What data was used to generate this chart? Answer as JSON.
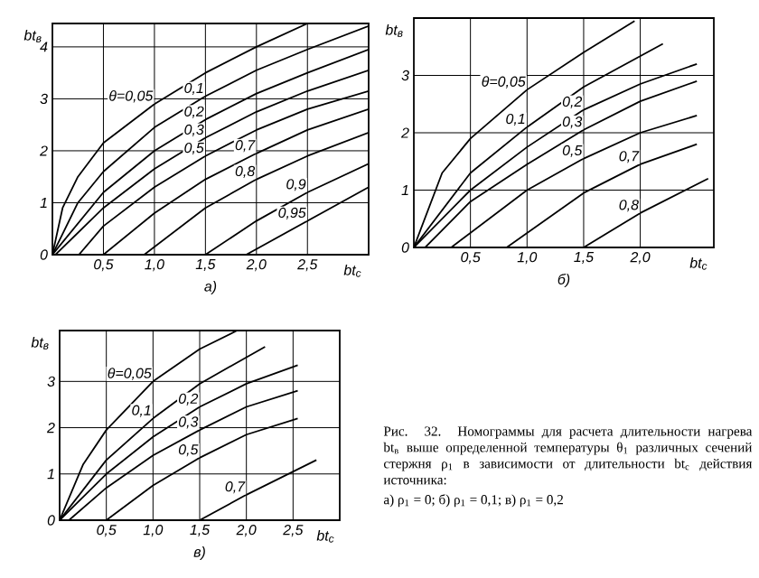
{
  "chart_data": [
    {
      "type": "line",
      "xlabel": "bt$_{c}$",
      "ylabel": "bt$_{в}$",
      "subtitle": "а)",
      "xlim": [
        0,
        3.1
      ],
      "ylim": [
        0,
        4.45
      ],
      "grid": true,
      "xticks": [
        {
          "value": 0.5,
          "label": "0,5"
        },
        {
          "value": 1.0,
          "label": "1,0"
        },
        {
          "value": 1.5,
          "label": "1,5"
        },
        {
          "value": 2.0,
          "label": "2,0"
        },
        {
          "value": 2.5,
          "label": "2,5"
        }
      ],
      "yticks": [
        0,
        1,
        2,
        3,
        4
      ],
      "series": [
        {
          "name": "θ=0,05",
          "color": "#000000",
          "x": [
            0,
            0.1,
            0.25,
            0.5,
            1.0,
            1.5,
            2.0,
            2.5
          ],
          "values": [
            0,
            0.9,
            1.5,
            2.15,
            2.9,
            3.5,
            4.0,
            4.45
          ]
        },
        {
          "name": "0,1",
          "color": "#000000",
          "x": [
            0,
            0.25,
            0.5,
            1.0,
            1.5,
            2.0,
            2.5,
            3.1
          ],
          "values": [
            0,
            1.0,
            1.6,
            2.45,
            3.05,
            3.55,
            3.95,
            4.4
          ]
        },
        {
          "name": "0,2",
          "color": "#000000",
          "x": [
            0,
            0.5,
            1.0,
            1.5,
            2.0,
            2.5,
            3.1
          ],
          "values": [
            0,
            1.2,
            2.0,
            2.6,
            3.1,
            3.5,
            3.95
          ]
        },
        {
          "name": "0,3",
          "color": "#000000",
          "x": [
            0.03,
            0.5,
            1.0,
            1.5,
            2.0,
            2.5,
            3.1
          ],
          "values": [
            0,
            0.9,
            1.65,
            2.25,
            2.75,
            3.15,
            3.55
          ]
        },
        {
          "name": "0,5",
          "color": "#000000",
          "x": [
            0.26,
            0.5,
            1.0,
            1.5,
            2.0,
            2.5,
            3.1
          ],
          "values": [
            0,
            0.55,
            1.3,
            1.9,
            2.4,
            2.8,
            3.15
          ]
        },
        {
          "name": "0,7",
          "color": "#000000",
          "x": [
            0.5,
            1.0,
            1.5,
            2.0,
            2.5,
            3.1
          ],
          "values": [
            0,
            0.8,
            1.45,
            1.95,
            2.4,
            2.8
          ]
        },
        {
          "name": "0,8",
          "color": "#000000",
          "x": [
            0.9,
            1.5,
            2.0,
            2.5,
            3.1
          ],
          "values": [
            0,
            0.9,
            1.45,
            1.9,
            2.35
          ]
        },
        {
          "name": "0,9",
          "color": "#000000",
          "x": [
            1.5,
            2.0,
            2.5,
            3.1
          ],
          "values": [
            0,
            0.65,
            1.2,
            1.75
          ]
        },
        {
          "name": "0,95",
          "color": "#000000",
          "x": [
            1.9,
            2.5,
            3.1
          ],
          "values": [
            0,
            0.65,
            1.3
          ]
        }
      ]
    },
    {
      "type": "line",
      "xlabel": "bt$_{c}$",
      "ylabel": "bt$_{в}$",
      "subtitle": "б)",
      "xlim": [
        0,
        2.65
      ],
      "ylim": [
        0,
        4
      ],
      "grid": true,
      "xticks": [
        {
          "value": 0.5,
          "label": "0,5"
        },
        {
          "value": 1.0,
          "label": "1,0"
        },
        {
          "value": 1.5,
          "label": "1,5"
        },
        {
          "value": 2.0,
          "label": "2,0"
        }
      ],
      "yticks": [
        0,
        1,
        2,
        3
      ],
      "series": [
        {
          "name": "θ=0,05",
          "color": "#000000",
          "x": [
            0,
            0.25,
            0.5,
            1.0,
            1.5,
            1.95
          ],
          "values": [
            0,
            1.3,
            1.9,
            2.75,
            3.4,
            3.95
          ]
        },
        {
          "name": "0,1",
          "color": "#000000",
          "x": [
            0,
            0.5,
            1.0,
            1.5,
            2.2
          ],
          "values": [
            0,
            1.3,
            2.1,
            2.8,
            3.55
          ]
        },
        {
          "name": "0,2",
          "color": "#000000",
          "x": [
            0,
            0.5,
            1.0,
            1.5,
            2.0,
            2.5
          ],
          "values": [
            0,
            1.0,
            1.75,
            2.4,
            2.85,
            3.2
          ]
        },
        {
          "name": "0,3",
          "color": "#000000",
          "x": [
            0.1,
            0.5,
            1.0,
            1.5,
            2.0,
            2.5
          ],
          "values": [
            0,
            0.8,
            1.45,
            2.05,
            2.55,
            2.9
          ]
        },
        {
          "name": "0,5",
          "color": "#000000",
          "x": [
            0.33,
            1.0,
            1.5,
            2.0,
            2.5
          ],
          "values": [
            0,
            1.0,
            1.55,
            2.0,
            2.3
          ]
        },
        {
          "name": "0,7",
          "color": "#000000",
          "x": [
            0.82,
            1.5,
            2.0,
            2.5
          ],
          "values": [
            0,
            0.95,
            1.45,
            1.8
          ]
        },
        {
          "name": "0,8",
          "color": "#000000",
          "x": [
            1.5,
            2.0,
            2.6
          ],
          "values": [
            0,
            0.6,
            1.2
          ]
        }
      ]
    },
    {
      "type": "line",
      "xlabel": "bt$_{c}$",
      "ylabel": "bt$_{в}$",
      "subtitle": "в)",
      "xlim": [
        0,
        3
      ],
      "ylim": [
        0,
        4.1
      ],
      "grid": true,
      "xticks": [
        {
          "value": 0.5,
          "label": "0,5"
        },
        {
          "value": 1.0,
          "label": "1,0"
        },
        {
          "value": 1.5,
          "label": "1,5"
        },
        {
          "value": 2.0,
          "label": "2,0"
        },
        {
          "value": 2.5,
          "label": "2,5"
        }
      ],
      "yticks": [
        0,
        1,
        2,
        3
      ],
      "series": [
        {
          "name": "θ=0,05",
          "color": "#000000",
          "x": [
            0,
            0.25,
            0.5,
            1.0,
            1.5,
            1.9
          ],
          "values": [
            0,
            1.2,
            1.95,
            3.0,
            3.7,
            4.1
          ]
        },
        {
          "name": "0,1",
          "color": "#000000",
          "x": [
            0,
            0.5,
            1.0,
            1.5,
            2.2
          ],
          "values": [
            0,
            1.3,
            2.2,
            2.95,
            3.75
          ]
        },
        {
          "name": "0,2",
          "color": "#000000",
          "x": [
            0,
            0.5,
            1.0,
            1.5,
            2.0,
            2.55
          ],
          "values": [
            0,
            1.0,
            1.8,
            2.45,
            2.95,
            3.35
          ]
        },
        {
          "name": "0,3",
          "color": "#000000",
          "x": [
            0.1,
            0.5,
            1.0,
            1.5,
            2.0,
            2.55
          ],
          "values": [
            0,
            0.7,
            1.4,
            1.95,
            2.45,
            2.8
          ]
        },
        {
          "name": "0,5",
          "color": "#000000",
          "x": [
            0.5,
            1.0,
            1.5,
            2.0,
            2.55
          ],
          "values": [
            0,
            0.75,
            1.35,
            1.85,
            2.2
          ]
        },
        {
          "name": "0,7",
          "color": "#000000",
          "x": [
            1.5,
            2.0,
            2.75
          ],
          "values": [
            0,
            0.55,
            1.3
          ]
        }
      ]
    },
    {
      "type": "other",
      "annotations": [
        "Рис. 32. Номограммы для расчета длительности нагрева bt$_{в}$ выше определенной температуры θ$_{1}$ различных сечений стержня ρ$_{1}$ в зависимости от длительности bt$_{c}$ действия источника:",
        "а) ρ$_{1}$ = 0; б) ρ$_{1}$ = 0,1; в) ρ$_{1}$ = 0,2"
      ]
    }
  ]
}
